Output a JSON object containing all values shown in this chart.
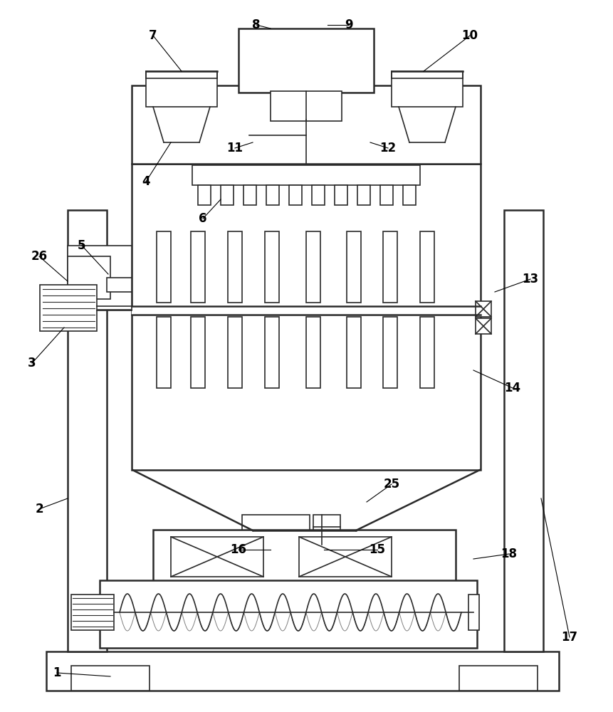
{
  "line_color": "#2a2a2a",
  "bg_color": "#ffffff",
  "lw": 1.2,
  "lw_thick": 1.8,
  "fig_width": 8.61,
  "fig_height": 10.0
}
